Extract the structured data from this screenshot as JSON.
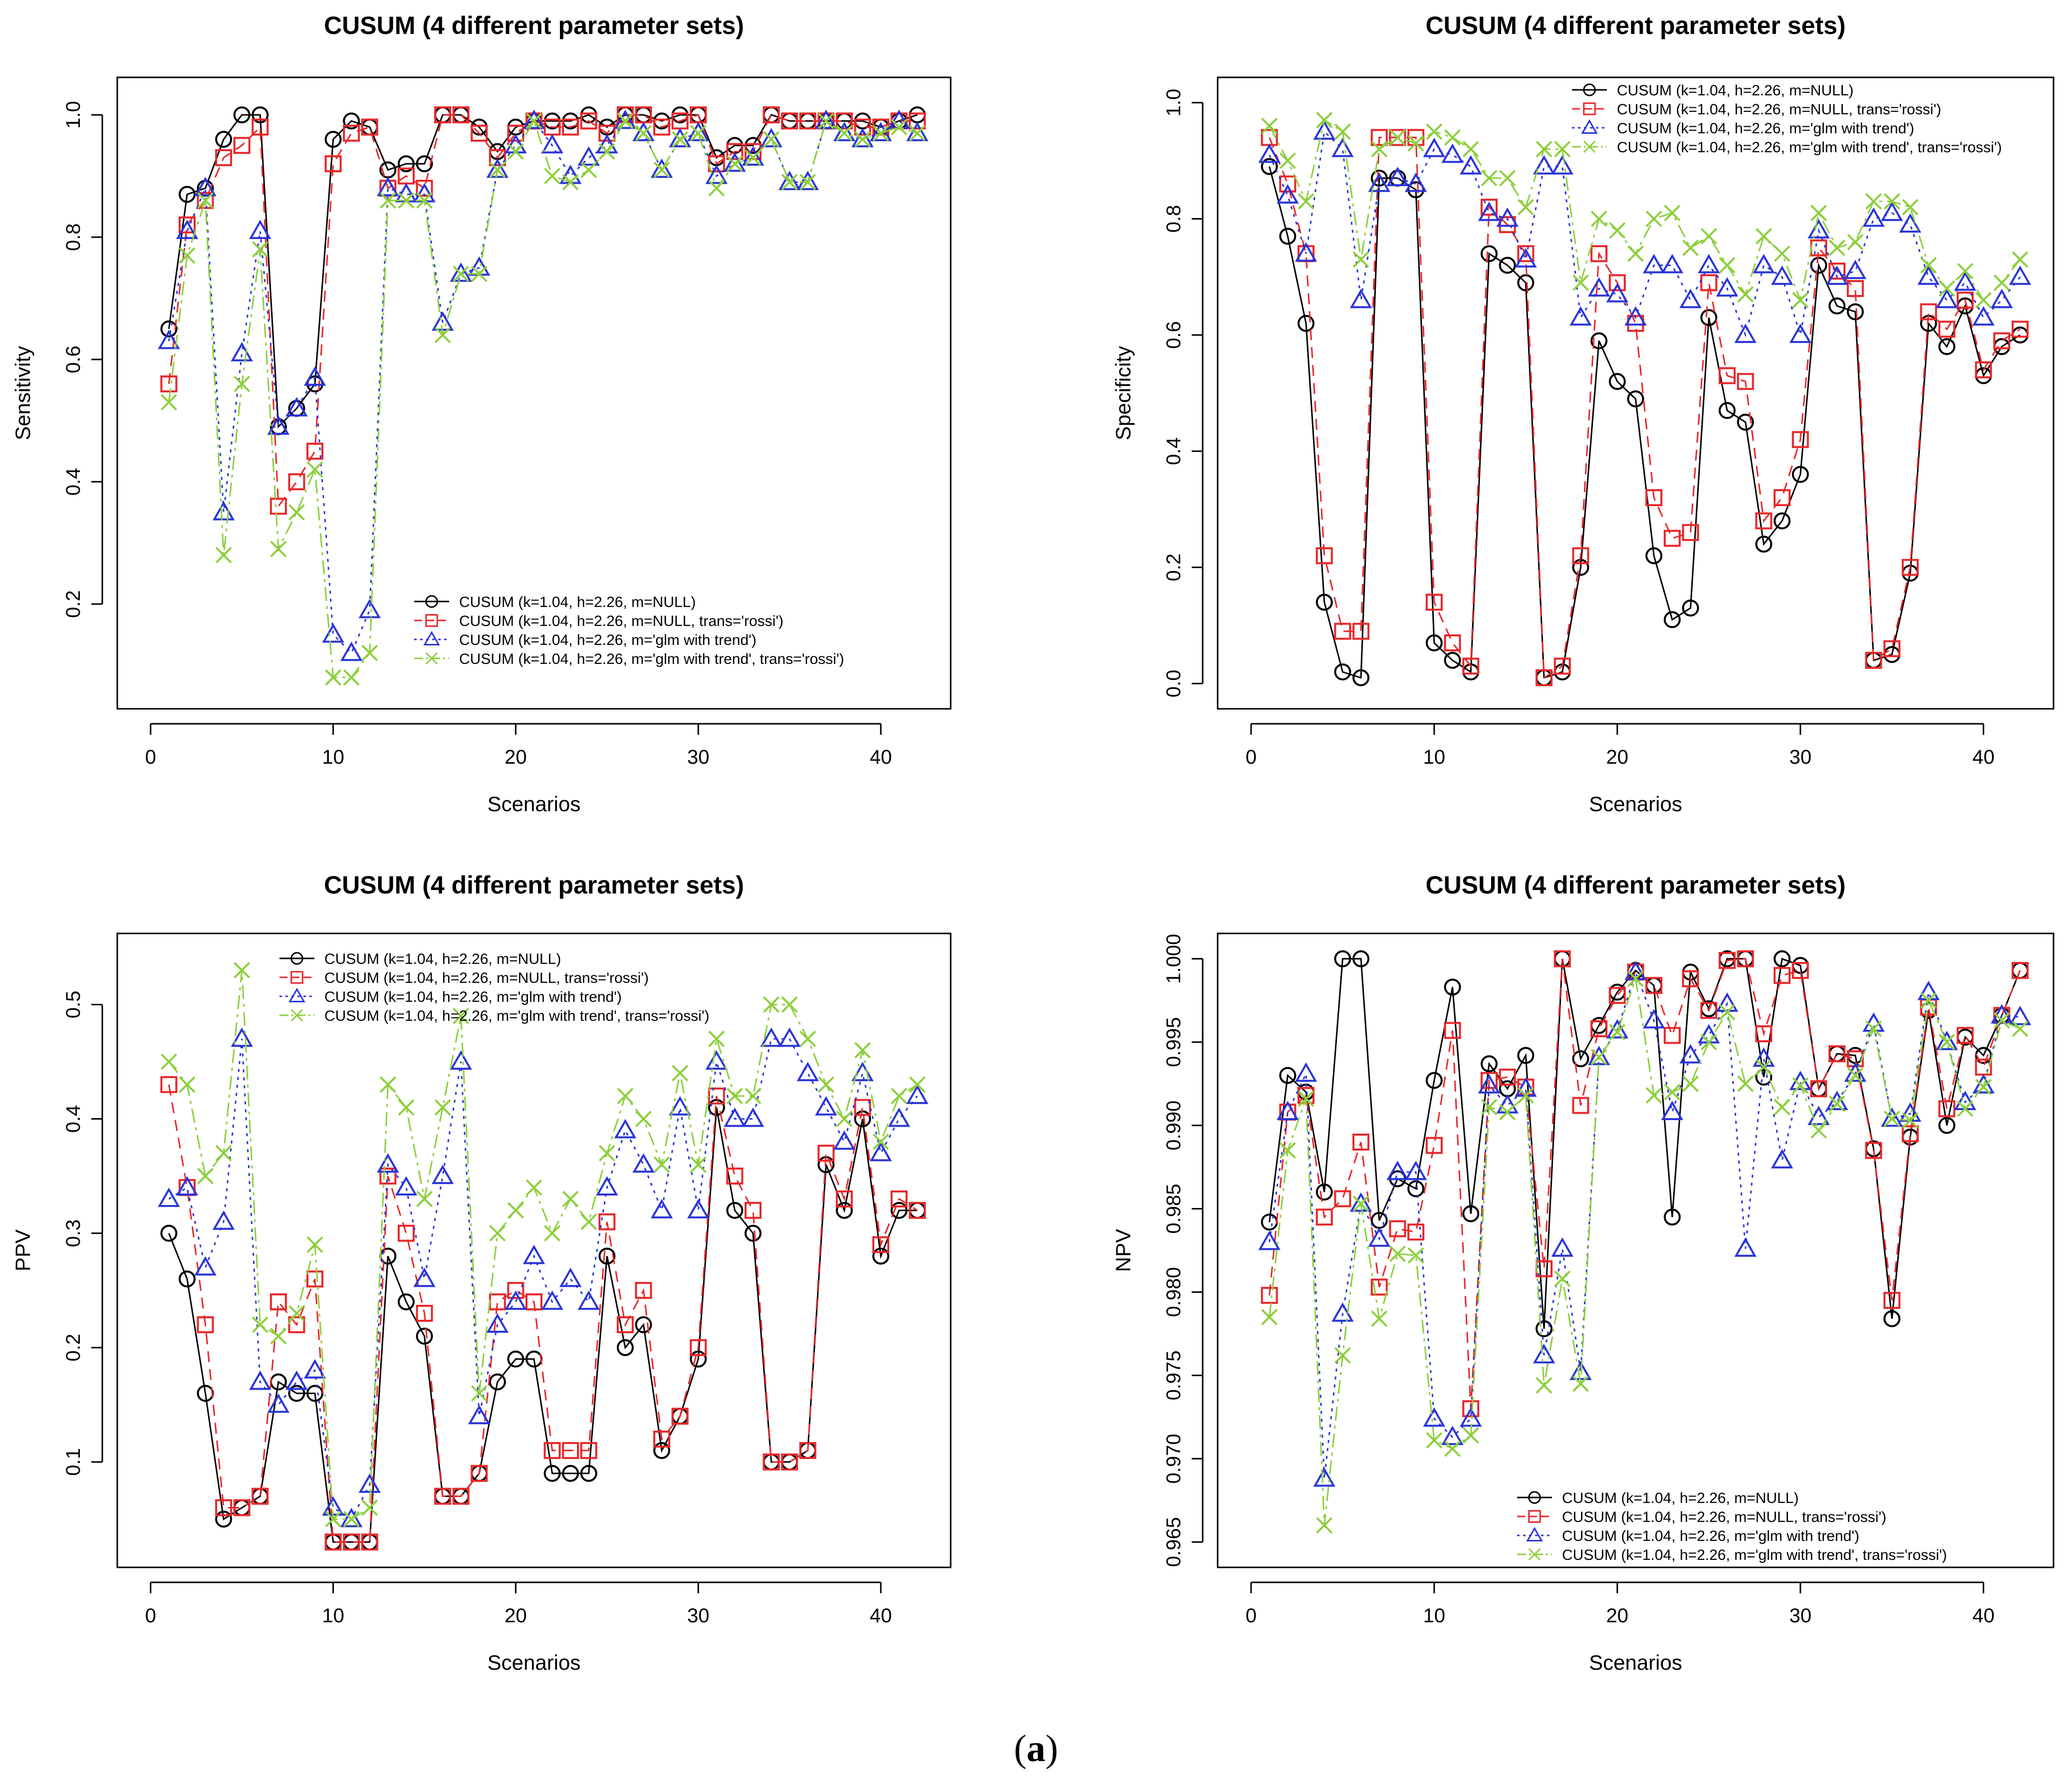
{
  "caption": {
    "prefix": "(",
    "label": "a",
    "suffix": ")"
  },
  "colors": {
    "s1": "#000000",
    "s2": "#e8272a",
    "s3": "#2a35d8",
    "s4": "#8ccf3c",
    "axis": "#000000"
  },
  "chart_data": [
    {
      "type": "line",
      "title": "CUSUM (4 different parameter sets)",
      "xlabel": "Scenarios",
      "ylabel": "Sensitivity",
      "xlim": [
        0,
        42
      ],
      "ylim": [
        0.07,
        1.02
      ],
      "xticks": [
        0,
        10,
        20,
        30,
        40
      ],
      "yticks": [
        0.2,
        0.4,
        0.6,
        0.8,
        1.0
      ],
      "ytick_labels": [
        "0.2",
        "0.4",
        "0.6",
        "0.8",
        "1.0"
      ],
      "legend_position": "bottom-right",
      "x": [
        1,
        2,
        3,
        4,
        5,
        6,
        7,
        8,
        9,
        10,
        11,
        12,
        13,
        14,
        15,
        16,
        17,
        18,
        19,
        20,
        21,
        22,
        23,
        24,
        25,
        26,
        27,
        28,
        29,
        30,
        31,
        32,
        33,
        34,
        35,
        36,
        37,
        38,
        39,
        40,
        41,
        42
      ],
      "series": [
        {
          "name": "CUSUM (k=1.04, h=2.26, m=NULL)",
          "values": [
            0.65,
            0.87,
            0.88,
            0.96,
            1.0,
            1.0,
            0.49,
            0.52,
            0.56,
            0.96,
            0.99,
            0.98,
            0.91,
            0.92,
            0.92,
            1.0,
            1.0,
            0.98,
            0.94,
            0.98,
            0.99,
            0.99,
            0.99,
            1.0,
            0.98,
            1.0,
            1.0,
            0.99,
            1.0,
            1.0,
            0.93,
            0.95,
            0.95,
            1.0,
            0.99,
            0.99,
            0.99,
            0.99,
            0.99,
            0.98,
            0.99,
            1.0
          ]
        },
        {
          "name": "CUSUM (k=1.04, h=2.26, m=NULL, trans='rossi')",
          "values": [
            0.56,
            0.82,
            0.86,
            0.93,
            0.95,
            0.98,
            0.36,
            0.4,
            0.45,
            0.92,
            0.97,
            0.98,
            0.88,
            0.9,
            0.88,
            1.0,
            1.0,
            0.97,
            0.93,
            0.97,
            0.99,
            0.98,
            0.98,
            0.99,
            0.97,
            1.0,
            1.0,
            0.98,
            0.99,
            1.0,
            0.92,
            0.94,
            0.94,
            1.0,
            0.99,
            0.99,
            0.99,
            0.99,
            0.98,
            0.98,
            0.99,
            0.99
          ]
        },
        {
          "name": "CUSUM (k=1.04, h=2.26, m='glm with trend')",
          "values": [
            0.63,
            0.81,
            0.88,
            0.35,
            0.61,
            0.81,
            0.49,
            0.52,
            0.57,
            0.15,
            0.12,
            0.19,
            0.88,
            0.87,
            0.87,
            0.66,
            0.74,
            0.75,
            0.91,
            0.95,
            0.99,
            0.95,
            0.9,
            0.93,
            0.95,
            0.99,
            0.97,
            0.91,
            0.96,
            0.97,
            0.9,
            0.92,
            0.93,
            0.96,
            0.89,
            0.89,
            0.99,
            0.97,
            0.96,
            0.97,
            0.99,
            0.97
          ]
        },
        {
          "name": "CUSUM (k=1.04, h=2.26, m='glm with trend', trans='rossi')",
          "values": [
            0.53,
            0.77,
            0.86,
            0.28,
            0.56,
            0.78,
            0.29,
            0.35,
            0.42,
            0.08,
            0.08,
            0.12,
            0.86,
            0.86,
            0.86,
            0.64,
            0.74,
            0.74,
            0.91,
            0.94,
            0.99,
            0.9,
            0.89,
            0.91,
            0.94,
            0.99,
            0.97,
            0.91,
            0.96,
            0.97,
            0.88,
            0.92,
            0.93,
            0.96,
            0.89,
            0.89,
            0.99,
            0.97,
            0.96,
            0.97,
            0.98,
            0.97
          ]
        }
      ]
    },
    {
      "type": "line",
      "title": "CUSUM (4 different parameter sets)",
      "xlabel": "Scenarios",
      "ylabel": "Specificity",
      "xlim": [
        0,
        42
      ],
      "ylim": [
        0.0,
        1.0
      ],
      "xticks": [
        0,
        10,
        20,
        30,
        40
      ],
      "yticks": [
        0.0,
        0.2,
        0.4,
        0.6,
        0.8,
        1.0
      ],
      "ytick_labels": [
        "0.0",
        "0.2",
        "0.4",
        "0.6",
        "0.8",
        "1.0"
      ],
      "legend_position": "top-right",
      "x": [
        1,
        2,
        3,
        4,
        5,
        6,
        7,
        8,
        9,
        10,
        11,
        12,
        13,
        14,
        15,
        16,
        17,
        18,
        19,
        20,
        21,
        22,
        23,
        24,
        25,
        26,
        27,
        28,
        29,
        30,
        31,
        32,
        33,
        34,
        35,
        36,
        37,
        38,
        39,
        40,
        41,
        42
      ],
      "series": [
        {
          "name": "CUSUM (k=1.04, h=2.26, m=NULL)",
          "values": [
            0.89,
            0.77,
            0.62,
            0.14,
            0.02,
            0.01,
            0.87,
            0.87,
            0.85,
            0.07,
            0.04,
            0.02,
            0.74,
            0.72,
            0.69,
            0.01,
            0.02,
            0.2,
            0.59,
            0.52,
            0.49,
            0.22,
            0.11,
            0.13,
            0.63,
            0.47,
            0.45,
            0.24,
            0.28,
            0.36,
            0.72,
            0.65,
            0.64,
            0.04,
            0.05,
            0.19,
            0.62,
            0.58,
            0.65,
            0.53,
            0.58,
            0.6
          ]
        },
        {
          "name": "CUSUM (k=1.04, h=2.26, m=NULL, trans='rossi')",
          "values": [
            0.94,
            0.86,
            0.74,
            0.22,
            0.09,
            0.09,
            0.94,
            0.94,
            0.94,
            0.14,
            0.07,
            0.03,
            0.82,
            0.79,
            0.74,
            0.01,
            0.03,
            0.22,
            0.74,
            0.69,
            0.62,
            0.32,
            0.25,
            0.26,
            0.69,
            0.53,
            0.52,
            0.28,
            0.32,
            0.42,
            0.75,
            0.71,
            0.68,
            0.04,
            0.06,
            0.2,
            0.64,
            0.61,
            0.66,
            0.54,
            0.59,
            0.61
          ]
        },
        {
          "name": "CUSUM (k=1.04, h=2.26, m='glm with trend')",
          "values": [
            0.91,
            0.84,
            0.74,
            0.95,
            0.92,
            0.66,
            0.86,
            0.87,
            0.86,
            0.92,
            0.91,
            0.89,
            0.81,
            0.8,
            0.73,
            0.89,
            0.89,
            0.63,
            0.68,
            0.67,
            0.63,
            0.72,
            0.72,
            0.66,
            0.72,
            0.68,
            0.6,
            0.72,
            0.7,
            0.6,
            0.78,
            0.7,
            0.71,
            0.8,
            0.81,
            0.79,
            0.7,
            0.66,
            0.69,
            0.63,
            0.66,
            0.7
          ]
        },
        {
          "name": "CUSUM (k=1.04, h=2.26, m='glm with trend', trans='rossi')",
          "values": [
            0.96,
            0.9,
            0.83,
            0.97,
            0.95,
            0.73,
            0.92,
            0.94,
            0.93,
            0.95,
            0.94,
            0.92,
            0.87,
            0.87,
            0.82,
            0.92,
            0.92,
            0.69,
            0.8,
            0.78,
            0.74,
            0.8,
            0.81,
            0.75,
            0.77,
            0.72,
            0.67,
            0.77,
            0.74,
            0.66,
            0.81,
            0.75,
            0.76,
            0.83,
            0.83,
            0.82,
            0.72,
            0.68,
            0.71,
            0.66,
            0.69,
            0.73
          ]
        }
      ]
    },
    {
      "type": "line",
      "title": "CUSUM (4 different parameter sets)",
      "xlabel": "Scenarios",
      "ylabel": "PPV",
      "xlim": [
        0,
        42
      ],
      "ylim": [
        0.03,
        0.54
      ],
      "xticks": [
        0,
        10,
        20,
        30,
        40
      ],
      "yticks": [
        0.1,
        0.2,
        0.3,
        0.4,
        0.5
      ],
      "ytick_labels": [
        "0.1",
        "0.2",
        "0.3",
        "0.4",
        "0.5"
      ],
      "legend_position": "top-right",
      "x": [
        1,
        2,
        3,
        4,
        5,
        6,
        7,
        8,
        9,
        10,
        11,
        12,
        13,
        14,
        15,
        16,
        17,
        18,
        19,
        20,
        21,
        22,
        23,
        24,
        25,
        26,
        27,
        28,
        29,
        30,
        31,
        32,
        33,
        34,
        35,
        36,
        37,
        38,
        39,
        40,
        41,
        42
      ],
      "series": [
        {
          "name": "CUSUM (k=1.04, h=2.26, m=NULL)",
          "values": [
            0.3,
            0.26,
            0.16,
            0.05,
            0.06,
            0.07,
            0.17,
            0.16,
            0.16,
            0.03,
            0.03,
            0.03,
            0.28,
            0.24,
            0.21,
            0.07,
            0.07,
            0.09,
            0.17,
            0.19,
            0.19,
            0.09,
            0.09,
            0.09,
            0.28,
            0.2,
            0.22,
            0.11,
            0.14,
            0.19,
            0.41,
            0.32,
            0.3,
            0.1,
            0.1,
            0.11,
            0.36,
            0.32,
            0.4,
            0.28,
            0.32,
            0.32
          ]
        },
        {
          "name": "CUSUM (k=1.04, h=2.26, m=NULL, trans='rossi')",
          "values": [
            0.43,
            0.34,
            0.22,
            0.06,
            0.06,
            0.07,
            0.24,
            0.22,
            0.26,
            0.03,
            0.03,
            0.03,
            0.35,
            0.3,
            0.23,
            0.07,
            0.07,
            0.09,
            0.24,
            0.25,
            0.24,
            0.11,
            0.11,
            0.11,
            0.31,
            0.22,
            0.25,
            0.12,
            0.14,
            0.2,
            0.42,
            0.35,
            0.32,
            0.1,
            0.1,
            0.11,
            0.37,
            0.33,
            0.41,
            0.29,
            0.33,
            0.32
          ]
        },
        {
          "name": "CUSUM (k=1.04, h=2.26, m='glm with trend')",
          "values": [
            0.33,
            0.34,
            0.27,
            0.31,
            0.47,
            0.17,
            0.15,
            0.17,
            0.18,
            0.06,
            0.05,
            0.08,
            0.36,
            0.34,
            0.26,
            0.35,
            0.45,
            0.14,
            0.22,
            0.24,
            0.28,
            0.24,
            0.26,
            0.24,
            0.34,
            0.39,
            0.36,
            0.32,
            0.41,
            0.32,
            0.45,
            0.4,
            0.4,
            0.47,
            0.47,
            0.44,
            0.41,
            0.38,
            0.44,
            0.37,
            0.4,
            0.42
          ]
        },
        {
          "name": "CUSUM (k=1.04, h=2.26, m='glm with trend', trans='rossi')",
          "values": [
            0.45,
            0.43,
            0.35,
            0.37,
            0.53,
            0.22,
            0.21,
            0.23,
            0.29,
            0.05,
            0.05,
            0.06,
            0.43,
            0.41,
            0.33,
            0.41,
            0.49,
            0.16,
            0.3,
            0.32,
            0.34,
            0.3,
            0.33,
            0.31,
            0.37,
            0.42,
            0.4,
            0.36,
            0.44,
            0.36,
            0.47,
            0.42,
            0.42,
            0.5,
            0.5,
            0.47,
            0.43,
            0.4,
            0.46,
            0.38,
            0.42,
            0.43
          ]
        }
      ]
    },
    {
      "type": "line",
      "title": "CUSUM (4 different parameter sets)",
      "xlabel": "Scenarios",
      "ylabel": "NPV",
      "xlim": [
        0,
        42
      ],
      "ylim": [
        0.965,
        1.0
      ],
      "xticks": [
        0,
        10,
        20,
        30,
        40
      ],
      "yticks": [
        0.965,
        0.97,
        0.975,
        0.98,
        0.985,
        0.99,
        0.995,
        1.0
      ],
      "ytick_labels": [
        "0.965",
        "0.970",
        "0.975",
        "0.980",
        "0.985",
        "0.990",
        "0.995",
        "1.000"
      ],
      "legend_position": "bottom-right",
      "x": [
        1,
        2,
        3,
        4,
        5,
        6,
        7,
        8,
        9,
        10,
        11,
        12,
        13,
        14,
        15,
        16,
        17,
        18,
        19,
        20,
        21,
        22,
        23,
        24,
        25,
        26,
        27,
        28,
        29,
        30,
        31,
        32,
        33,
        34,
        35,
        36,
        37,
        38,
        39,
        40,
        41,
        42
      ],
      "series": [
        {
          "name": "CUSUM (k=1.04, h=2.26, m=NULL)",
          "values": [
            0.9842,
            0.993,
            0.992,
            0.986,
            1.0,
            1.0,
            0.9843,
            0.9868,
            0.9862,
            0.9927,
            0.9983,
            0.9847,
            0.9937,
            0.9922,
            0.9942,
            0.9778,
            1.0,
            0.994,
            0.996,
            0.998,
            0.9993,
            0.9984,
            0.9845,
            0.9992,
            0.997,
            1.0,
            1.0,
            0.9929,
            1.0,
            0.9996,
            0.9922,
            0.9943,
            0.9942,
            0.9886,
            0.9784,
            0.9893,
            0.9969,
            0.99,
            0.9953,
            0.9942,
            0.9966,
            0.9993
          ]
        },
        {
          "name": "CUSUM (k=1.04, h=2.26, m=NULL, trans='rossi')",
          "values": [
            0.9798,
            0.9908,
            0.9918,
            0.9845,
            0.9856,
            0.989,
            0.9803,
            0.9838,
            0.9836,
            0.9888,
            0.9957,
            0.973,
            0.9927,
            0.9929,
            0.9923,
            0.9814,
            1.0,
            0.9912,
            0.9958,
            0.9978,
            0.9992,
            0.9984,
            0.9954,
            0.9988,
            0.9969,
            0.9999,
            1.0,
            0.9955,
            0.999,
            0.9993,
            0.9922,
            0.9943,
            0.994,
            0.9885,
            0.9795,
            0.9895,
            0.9971,
            0.991,
            0.9954,
            0.9935,
            0.9966,
            0.9993
          ]
        },
        {
          "name": "CUSUM (k=1.04, h=2.26, m='glm with trend')",
          "values": [
            0.983,
            0.9908,
            0.9931,
            0.9688,
            0.9787,
            0.9853,
            0.9832,
            0.9872,
            0.9872,
            0.9724,
            0.9713,
            0.9724,
            0.9924,
            0.9912,
            0.9922,
            0.9762,
            0.9826,
            0.9752,
            0.9941,
            0.9957,
            0.9992,
            0.9963,
            0.9908,
            0.9942,
            0.9954,
            0.9973,
            0.9826,
            0.994,
            0.9879,
            0.9926,
            0.9905,
            0.9914,
            0.9931,
            0.9961,
            0.9904,
            0.9907,
            0.998,
            0.995,
            0.9914,
            0.9924,
            0.9966,
            0.9965
          ]
        },
        {
          "name": "CUSUM (k=1.04, h=2.26, m='glm with trend', trans='rossi')",
          "values": [
            0.9785,
            0.9885,
            0.9916,
            0.966,
            0.9762,
            0.9853,
            0.9784,
            0.9823,
            0.9822,
            0.9711,
            0.9706,
            0.9714,
            0.9911,
            0.9908,
            0.9918,
            0.9744,
            0.9808,
            0.9745,
            0.9941,
            0.9956,
            0.9988,
            0.9918,
            0.992,
            0.9925,
            0.995,
            0.9968,
            0.9925,
            0.9935,
            0.9911,
            0.9924,
            0.9897,
            0.9913,
            0.993,
            0.9958,
            0.9904,
            0.9903,
            0.9975,
            0.995,
            0.991,
            0.9923,
            0.9963,
            0.9958
          ]
        }
      ]
    }
  ]
}
